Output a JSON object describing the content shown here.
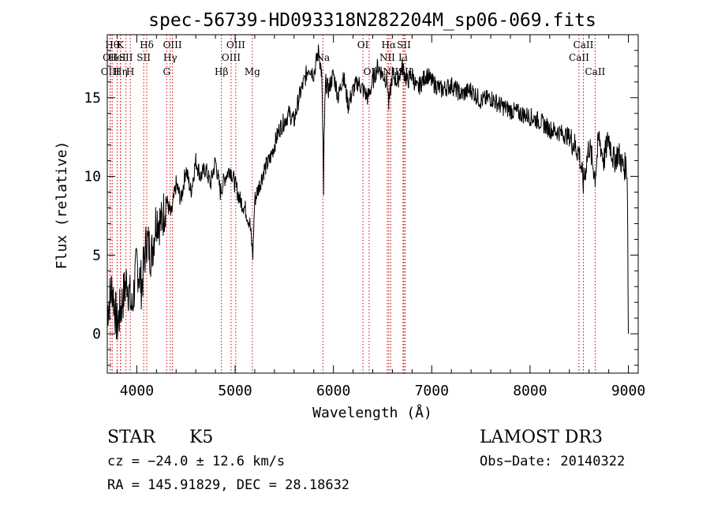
{
  "chart_data": {
    "type": "line",
    "title": "spec-56739-HD093318N282204M_sp06-069.fits",
    "xlabel": "Wavelength (Å)",
    "ylabel": "Flux (relative)",
    "xlim": [
      3700,
      9100
    ],
    "ylim": [
      -2.5,
      19.0
    ],
    "x_ticks": [
      4000,
      5000,
      6000,
      7000,
      8000,
      9000
    ],
    "x_tick_labels": [
      "4000",
      "5000",
      "6000",
      "7000",
      "8000",
      "9000"
    ],
    "y_ticks": [
      0,
      5,
      10,
      15
    ],
    "y_tick_labels": [
      "0",
      "5",
      "10",
      "15"
    ],
    "series": [
      {
        "name": "flux",
        "color": "#000000",
        "x": [
          3700,
          3750,
          3800,
          3850,
          3900,
          3950,
          4000,
          4050,
          4100,
          4150,
          4200,
          4250,
          4300,
          4350,
          4400,
          4450,
          4500,
          4550,
          4600,
          4650,
          4700,
          4750,
          4800,
          4850,
          4900,
          4950,
          5000,
          5050,
          5100,
          5150,
          5180,
          5200,
          5250,
          5300,
          5350,
          5400,
          5450,
          5500,
          5550,
          5600,
          5650,
          5700,
          5750,
          5800,
          5850,
          5880,
          5895,
          5900,
          5905,
          5920,
          5950,
          6000,
          6050,
          6100,
          6150,
          6200,
          6250,
          6300,
          6350,
          6400,
          6450,
          6500,
          6550,
          6563,
          6600,
          6650,
          6700,
          6750,
          6800,
          6850,
          6900,
          6950,
          7000,
          7100,
          7200,
          7300,
          7400,
          7500,
          7600,
          7700,
          7800,
          7900,
          8000,
          8100,
          8200,
          8300,
          8400,
          8450,
          8500,
          8542,
          8600,
          8662,
          8700,
          8750,
          8800,
          8850,
          8900,
          8950,
          8980,
          8990,
          9000
        ],
        "y": [
          1.5,
          3.0,
          0.5,
          2.0,
          3.5,
          1.5,
          4.5,
          3.0,
          6.0,
          5.0,
          7.5,
          7.0,
          8.5,
          7.5,
          9.5,
          8.5,
          10.5,
          9.0,
          11.0,
          10.0,
          10.5,
          9.5,
          11.0,
          9.0,
          10.0,
          10.5,
          9.5,
          8.5,
          8.0,
          7.0,
          5.0,
          8.5,
          9.5,
          10.5,
          11.0,
          12.0,
          13.0,
          13.5,
          14.0,
          13.5,
          15.0,
          16.0,
          17.0,
          16.5,
          18.0,
          16.5,
          12.0,
          8.5,
          12.5,
          16.0,
          15.5,
          16.5,
          15.0,
          16.5,
          14.5,
          15.5,
          16.0,
          15.5,
          15.0,
          16.0,
          17.0,
          16.5,
          16.0,
          14.5,
          16.5,
          16.0,
          17.0,
          16.0,
          16.5,
          15.5,
          16.0,
          16.5,
          16.0,
          15.5,
          15.8,
          15.2,
          15.5,
          14.8,
          15.0,
          14.5,
          14.2,
          14.0,
          13.8,
          13.5,
          13.0,
          12.8,
          12.5,
          12.0,
          11.5,
          9.5,
          12.0,
          10.0,
          12.5,
          11.0,
          12.5,
          11.0,
          11.5,
          10.5,
          10.8,
          9.5,
          0.0
        ]
      }
    ],
    "line_markers": [
      {
        "wave": 3750,
        "label": "Hθ",
        "row": 1
      },
      {
        "wave": 3730,
        "label": "OII",
        "row": 2
      },
      {
        "wave": 3730,
        "label": "OIII",
        "row": 3
      },
      {
        "wave": 3834,
        "label": "K",
        "row": 1
      },
      {
        "wave": 3800,
        "label": "HeI",
        "row": 2
      },
      {
        "wave": 3835,
        "label": "Hη",
        "row": 3
      },
      {
        "wave": 3934,
        "label": "H",
        "row": 3
      },
      {
        "wave": 3890,
        "label": "SII",
        "row": 2
      },
      {
        "wave": 4101,
        "label": "Hδ",
        "row": 1
      },
      {
        "wave": 4070,
        "label": "SII",
        "row": 2
      },
      {
        "wave": 4363,
        "label": "OIII",
        "row": 1
      },
      {
        "wave": 4340,
        "label": "Hγ",
        "row": 2
      },
      {
        "wave": 4304,
        "label": "G",
        "row": 3
      },
      {
        "wave": 4861,
        "label": "Hβ",
        "row": 3
      },
      {
        "wave": 5007,
        "label": "OIII",
        "row": 1
      },
      {
        "wave": 4959,
        "label": "OIII",
        "row": 2
      },
      {
        "wave": 5175,
        "label": "Mg",
        "row": 3
      },
      {
        "wave": 5893,
        "label": "Na",
        "row": 2
      },
      {
        "wave": 6300,
        "label": "OI",
        "row": 1
      },
      {
        "wave": 6363,
        "label": "OI",
        "row": 3
      },
      {
        "wave": 6563,
        "label": "Hα",
        "row": 1
      },
      {
        "wave": 6548,
        "label": "NII",
        "row": 2
      },
      {
        "wave": 6583,
        "label": "NII",
        "row": 3
      },
      {
        "wave": 6717,
        "label": "SII",
        "row": 1
      },
      {
        "wave": 6708,
        "label": "Li",
        "row": 2
      },
      {
        "wave": 6731,
        "label": "SII",
        "row": 3
      },
      {
        "wave": 8542,
        "label": "CaII",
        "row": 1
      },
      {
        "wave": 8498,
        "label": "CaII",
        "row": 2
      },
      {
        "wave": 8662,
        "label": "CaII",
        "row": 3
      }
    ],
    "marker_color": "#cc0000"
  },
  "info": {
    "object_type": "STAR",
    "subclass": "K5",
    "survey": "LAMOST DR3",
    "cz": "cz = −24.0 ± 12.6 km/s",
    "obs_date": "Obs−Date: 20140322",
    "coords": "RA = 145.91829, DEC =  28.18632"
  }
}
